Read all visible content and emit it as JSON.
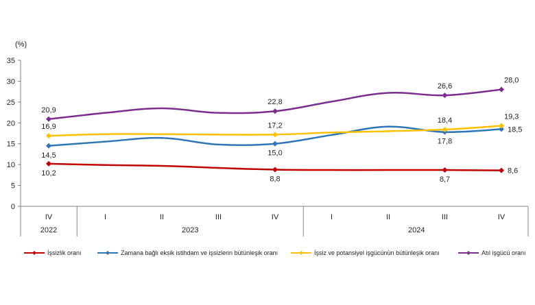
{
  "chart_data": {
    "type": "line",
    "title": "",
    "ylabel": "(%)",
    "xlabel": "",
    "ylim": [
      0,
      35
    ],
    "y_ticks": [
      "0",
      "5",
      "10",
      "15",
      "20",
      "25",
      "30",
      "35"
    ],
    "grid": false,
    "legend_position": "bottom",
    "x_quarters": [
      "IV",
      "I",
      "II",
      "III",
      "IV",
      "I",
      "II",
      "III",
      "IV"
    ],
    "x_years": [
      {
        "label": "2022",
        "start": 0,
        "end": 0
      },
      {
        "label": "2023",
        "start": 1,
        "end": 4
      },
      {
        "label": "2024",
        "start": 5,
        "end": 8
      }
    ],
    "series": [
      {
        "name": "İşsizlik oranı",
        "color": "#C00000",
        "values": [
          10.2,
          9.9,
          9.7,
          9.2,
          8.8,
          8.7,
          8.7,
          8.7,
          8.6
        ],
        "labels": [
          {
            "index": 0,
            "text": "10,2",
            "pos": "below"
          },
          {
            "index": 4,
            "text": "8,8",
            "pos": "below"
          },
          {
            "index": 7,
            "text": "8,7",
            "pos": "below"
          },
          {
            "index": 8,
            "text": "8,6",
            "pos": "right"
          }
        ]
      },
      {
        "name": "Zamana bağlı eksik istihdam ve işsizlerin bütünleşik oranı",
        "color": "#2E75B6",
        "values": [
          14.5,
          15.5,
          16.4,
          14.8,
          15.0,
          17.1,
          19.1,
          17.8,
          18.5
        ],
        "labels": [
          {
            "index": 0,
            "text": "14,5",
            "pos": "below"
          },
          {
            "index": 4,
            "text": "15,0",
            "pos": "below"
          },
          {
            "index": 7,
            "text": "17,8",
            "pos": "below"
          },
          {
            "index": 8,
            "text": "18,5",
            "pos": "right"
          }
        ]
      },
      {
        "name": "İşsiz ve potansiyel işgücünün bütünleşik oranı",
        "color": "#FFC000",
        "values": [
          16.9,
          17.3,
          17.3,
          17.2,
          17.2,
          17.7,
          18.0,
          18.4,
          19.3
        ],
        "labels": [
          {
            "index": 0,
            "text": "16,9",
            "pos": "above"
          },
          {
            "index": 4,
            "text": "17,2",
            "pos": "above"
          },
          {
            "index": 7,
            "text": "18,4",
            "pos": "above"
          },
          {
            "index": 8,
            "text": "19,3",
            "pos": "aboveright"
          }
        ]
      },
      {
        "name": "Atıl işgücü oranı",
        "color": "#7B2C8E",
        "values": [
          20.9,
          22.4,
          23.5,
          22.4,
          22.8,
          25.1,
          27.2,
          26.6,
          28.0
        ],
        "labels": [
          {
            "index": 0,
            "text": "20,9",
            "pos": "above"
          },
          {
            "index": 4,
            "text": "22,8",
            "pos": "above"
          },
          {
            "index": 7,
            "text": "26,6",
            "pos": "above"
          },
          {
            "index": 8,
            "text": "28,0",
            "pos": "aboveright"
          }
        ]
      }
    ]
  }
}
